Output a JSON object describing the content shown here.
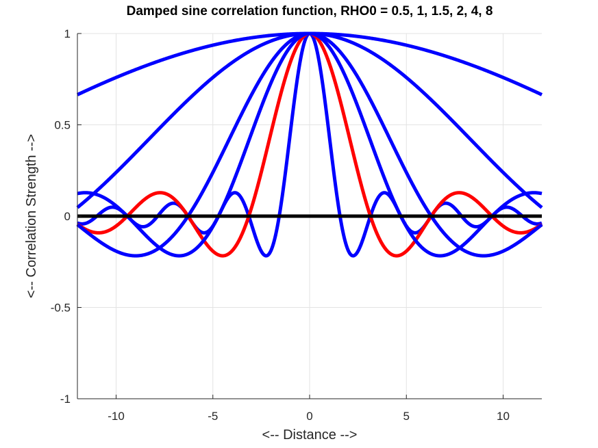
{
  "chart_data": {
    "type": "line",
    "title": "Damped sine correlation function, RHO0 = 0.5, 1, 1.5, 2, 4, 8",
    "xlabel": "<-- Distance -->",
    "ylabel": "<-- Correlation Strength -->",
    "xlim": [
      -12,
      12
    ],
    "ylim": [
      -1,
      1
    ],
    "xticks": [
      -10,
      -5,
      0,
      5,
      10
    ],
    "xtick_labels": [
      "-10",
      "-5",
      "0",
      "5",
      "10"
    ],
    "yticks": [
      -1,
      -0.5,
      0,
      0.5,
      1
    ],
    "ytick_labels": [
      "-1",
      "-0.5",
      "0",
      "0.5",
      "1"
    ],
    "grid": true,
    "function": "sin(x/rho0)/(x/rho0)",
    "x_range": [
      -12,
      12
    ],
    "series": [
      {
        "name": "RHO0 = 0.5",
        "rho0": 0.5,
        "color": "#0000ff"
      },
      {
        "name": "RHO0 = 1",
        "rho0": 1,
        "color": "#ff0000"
      },
      {
        "name": "RHO0 = 1.5",
        "rho0": 1.5,
        "color": "#0000ff"
      },
      {
        "name": "RHO0 = 2",
        "rho0": 2,
        "color": "#0000ff"
      },
      {
        "name": "RHO0 = 4",
        "rho0": 4,
        "color": "#0000ff"
      },
      {
        "name": "RHO0 = 8",
        "rho0": 8,
        "color": "#0000ff"
      },
      {
        "name": "zero line",
        "type": "constant",
        "value": 0,
        "color": "#000000"
      }
    ]
  }
}
